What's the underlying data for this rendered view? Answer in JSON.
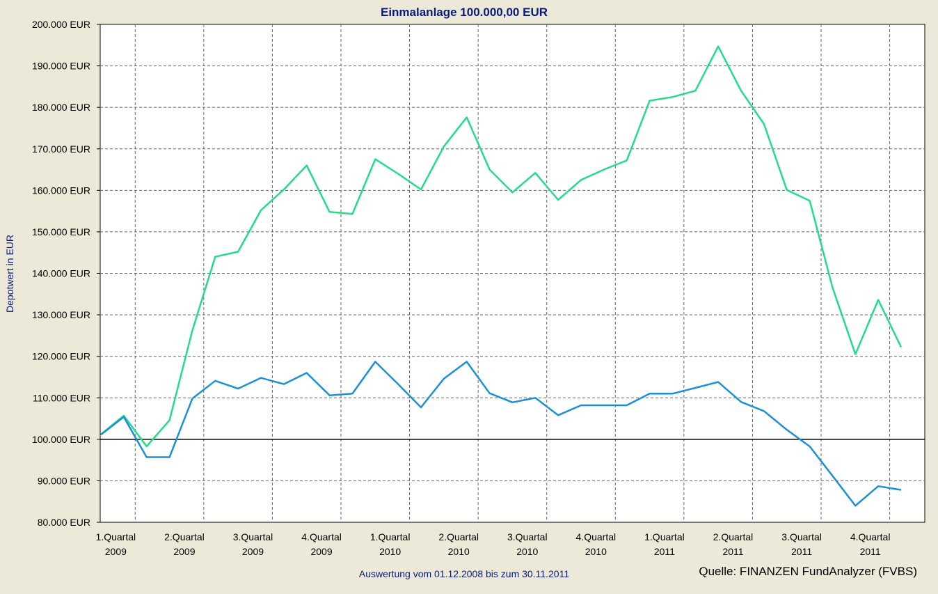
{
  "chart_data": {
    "type": "line",
    "title": "Einmalanlage 100.000,00 EUR",
    "xlabel": "Auswertung vom 01.12.2008 bis zum 30.11.2011",
    "ylabel": "Depotwert in EUR",
    "source": "Quelle: FINANZEN FundAnalyzer (FVBS)",
    "ylim": [
      80000,
      200000
    ],
    "yticks": [
      {
        "value": 200000,
        "label": "200.000 EUR"
      },
      {
        "value": 190000,
        "label": "190.000 EUR"
      },
      {
        "value": 180000,
        "label": "180.000 EUR"
      },
      {
        "value": 170000,
        "label": "170.000 EUR"
      },
      {
        "value": 160000,
        "label": "160.000 EUR"
      },
      {
        "value": 150000,
        "label": "150.000 EUR"
      },
      {
        "value": 140000,
        "label": "140.000 EUR"
      },
      {
        "value": 130000,
        "label": "130.000 EUR"
      },
      {
        "value": 120000,
        "label": "120.000 EUR"
      },
      {
        "value": 110000,
        "label": "110.000 EUR"
      },
      {
        "value": 100000,
        "label": "100.000 EUR"
      },
      {
        "value": 90000,
        "label": "90.000 EUR"
      },
      {
        "value": 80000,
        "label": "80.000 EUR"
      }
    ],
    "baseline": 100000,
    "x_count": 36,
    "xticks": [
      {
        "line1": "1.Quartal",
        "line2": "2009"
      },
      {
        "line1": "2.Quartal",
        "line2": "2009"
      },
      {
        "line1": "3.Quartal",
        "line2": "2009"
      },
      {
        "line1": "4.Quartal",
        "line2": "2009"
      },
      {
        "line1": "1.Quartal",
        "line2": "2010"
      },
      {
        "line1": "2.Quartal",
        "line2": "2010"
      },
      {
        "line1": "3.Quartal",
        "line2": "2010"
      },
      {
        "line1": "4.Quartal",
        "line2": "2010"
      },
      {
        "line1": "1.Quartal",
        "line2": "2011"
      },
      {
        "line1": "2.Quartal",
        "line2": "2011"
      },
      {
        "line1": "3.Quartal",
        "line2": "2011"
      },
      {
        "line1": "4.Quartal",
        "line2": "2011"
      }
    ],
    "grid": true,
    "series": [
      {
        "color": "#22dd88",
        "values": [
          101200,
          105700,
          98300,
          104600,
          126200,
          144000,
          145200,
          155200,
          160200,
          166000,
          154800,
          154300,
          167500,
          164000,
          160200,
          170600,
          177600,
          165000,
          159500,
          164200,
          157700,
          162500,
          165000,
          167200,
          181600,
          182500,
          184000,
          194700,
          184000,
          176000,
          160100,
          157500,
          136600,
          120500,
          133600,
          122200
        ]
      },
      {
        "color": "#1b8fd8",
        "values": [
          101100,
          105400,
          95700,
          95700,
          109800,
          114100,
          112200,
          114800,
          113300,
          116000,
          110600,
          111000,
          118700,
          113300,
          107700,
          114600,
          118700,
          111100,
          108900,
          110000,
          105800,
          108200,
          108200,
          108200,
          111000,
          111000,
          112400,
          113800,
          109000,
          106800,
          102300,
          98300,
          91200,
          84000,
          88700,
          87800
        ]
      }
    ]
  }
}
